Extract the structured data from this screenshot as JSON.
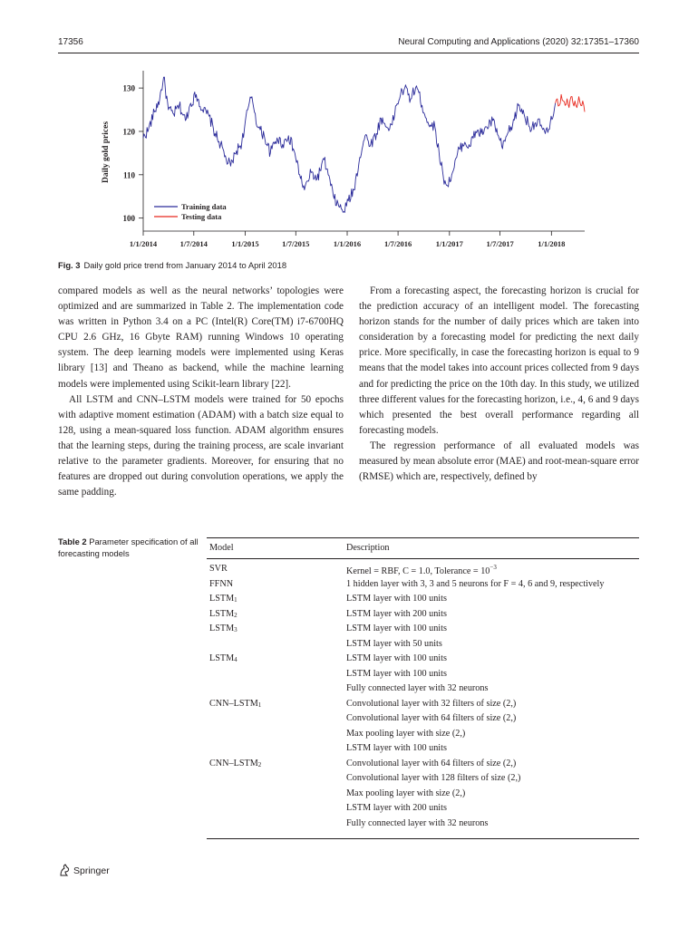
{
  "header": {
    "page_number": "17356",
    "journal": "Neural Computing and Applications (2020) 32:17351–17360"
  },
  "figure": {
    "label": "Fig. 3",
    "caption": "Daily gold price trend from January 2014 to April 2018"
  },
  "chart_data": {
    "type": "line",
    "title": "",
    "xlabel": "",
    "ylabel": "Daily gold prices",
    "x_ticks": [
      "1/1/2014",
      "1/7/2014",
      "1/1/2015",
      "1/7/2015",
      "1/1/2016",
      "1/7/2016",
      "1/1/2017",
      "1/7/2017",
      "1/1/2018"
    ],
    "y_ticks": [
      100,
      110,
      120,
      130
    ],
    "ylim": [
      97,
      134
    ],
    "xlim": [
      "2014-01-01",
      "2018-04-30"
    ],
    "legend_position": "bottom-left",
    "colors": {
      "Training data": "#2b2b9a",
      "Testing data": "#e8281e"
    },
    "series": [
      {
        "name": "Training data",
        "x": [
          "2014-01-01",
          "2014-01-20",
          "2014-02-10",
          "2014-03-01",
          "2014-03-15",
          "2014-04-01",
          "2014-04-20",
          "2014-05-10",
          "2014-06-01",
          "2014-06-20",
          "2014-07-10",
          "2014-08-01",
          "2014-08-25",
          "2014-09-15",
          "2014-10-05",
          "2014-10-25",
          "2014-11-10",
          "2014-12-01",
          "2014-12-20",
          "2015-01-10",
          "2015-01-25",
          "2015-02-15",
          "2015-03-10",
          "2015-04-01",
          "2015-04-25",
          "2015-05-15",
          "2015-06-05",
          "2015-06-25",
          "2015-07-15",
          "2015-08-01",
          "2015-08-25",
          "2015-09-15",
          "2015-10-10",
          "2015-10-25",
          "2015-11-15",
          "2015-12-05",
          "2015-12-20",
          "2016-01-05",
          "2016-01-25",
          "2016-02-15",
          "2016-03-05",
          "2016-03-25",
          "2016-04-15",
          "2016-05-01",
          "2016-05-20",
          "2016-06-10",
          "2016-06-25",
          "2016-07-10",
          "2016-07-25",
          "2016-08-15",
          "2016-09-05",
          "2016-09-25",
          "2016-10-10",
          "2016-10-25",
          "2016-11-10",
          "2016-11-25",
          "2016-12-10",
          "2016-12-25",
          "2017-01-15",
          "2017-02-05",
          "2017-02-25",
          "2017-03-15",
          "2017-04-05",
          "2017-04-25",
          "2017-05-15",
          "2017-06-05",
          "2017-06-25",
          "2017-07-10",
          "2017-07-25",
          "2017-08-15",
          "2017-09-05",
          "2017-09-25",
          "2017-10-15",
          "2017-11-05",
          "2017-11-25",
          "2017-12-10",
          "2017-12-25",
          "2018-01-15"
        ],
        "y": [
          118.5,
          120.5,
          124.5,
          127.5,
          132.5,
          125,
          124,
          126,
          122.5,
          126.5,
          128.5,
          125,
          123.5,
          119.5,
          117,
          113.5,
          112,
          115.5,
          117.5,
          125,
          128,
          121,
          119,
          115,
          118.5,
          117,
          119,
          115.5,
          110,
          106.5,
          110.5,
          109,
          113.5,
          110,
          104.5,
          102.5,
          101.5,
          104,
          106.5,
          114,
          119,
          117,
          119.5,
          123,
          121,
          121.5,
          126,
          128.5,
          130,
          127.5,
          130.5,
          126,
          123,
          121.5,
          121,
          115,
          109.5,
          107.5,
          111,
          116,
          117.5,
          116.5,
          120,
          119.5,
          121,
          122.5,
          119,
          116,
          119,
          121.5,
          126,
          124,
          121,
          122,
          121.5,
          119.5,
          120.5,
          126.5
        ]
      },
      {
        "name": "Testing data",
        "x": [
          "2018-01-15",
          "2018-01-22",
          "2018-01-29",
          "2018-02-05",
          "2018-02-12",
          "2018-02-19",
          "2018-02-26",
          "2018-03-05",
          "2018-03-12",
          "2018-03-19",
          "2018-03-26",
          "2018-04-02",
          "2018-04-09",
          "2018-04-16",
          "2018-04-23",
          "2018-04-30"
        ],
        "y": [
          126.5,
          127.5,
          126,
          128.5,
          127,
          126,
          127.5,
          125.5,
          128,
          126.5,
          127,
          125.5,
          128,
          126,
          127,
          124.5
        ]
      }
    ]
  },
  "left_column": [
    "compared models as well as the neural networks’ topologies were optimized and are summarized in Table 2. The implementation code was written in Python 3.4 on a PC (Intel(R) Core(TM) i7-6700HQ CPU 2.6 GHz, 16 Gbyte RAM) running Windows 10 operating system. The deep learning models were implemented using Keras library [13] and Theano as backend, while the machine learning models were implemented using Scikit-learn library [22].",
    "All LSTM and CNN–LSTM models were trained for 50 epochs with adaptive moment estimation (ADAM) with a batch size equal to 128, using a mean-squared loss function. ADAM algorithm ensures that the learning steps, during the training process, are scale invariant relative to the parameter gradients. Moreover, for ensuring that no features are dropped out during convolution operations, we apply the same padding."
  ],
  "right_column": [
    "From a forecasting aspect, the forecasting horizon is crucial for the prediction accuracy of an intelligent model. The forecasting horizon stands for the number of daily prices which are taken into consideration by a forecasting model for predicting the next daily price. More specifically, in case the forecasting horizon is equal to 9 means that the model takes into account prices collected from 9 days and for predicting the price on the 10th day. In this study, we utilized three different values for the forecasting horizon, i.e., 4, 6 and 9 days which presented the best overall performance regarding all forecasting models.",
    "The regression performance of all evaluated models was measured by mean absolute error (MAE) and root-mean-square error (RMSE) which are, respectively, defined by"
  ],
  "table": {
    "label": "Table 2",
    "caption": "Parameter specification of all forecasting models",
    "headers": {
      "model": "Model",
      "description": "Description"
    },
    "rows": [
      {
        "model": "SVR",
        "model_sub": "",
        "description": "Kernel = RBF, C = 1.0, Tolerance = 10",
        "description_sup": "−3"
      },
      {
        "model": "FFNN",
        "model_sub": "",
        "description": "1 hidden layer with 3, 3 and 5 neurons for F = 4, 6 and 9, respectively",
        "description_sup": ""
      },
      {
        "model": "LSTM",
        "model_sub": "1",
        "description": "LSTM layer with 100 units",
        "description_sup": ""
      },
      {
        "model": "LSTM",
        "model_sub": "2",
        "description": "LSTM layer with 200 units",
        "description_sup": ""
      },
      {
        "model": "LSTM",
        "model_sub": "3",
        "description": "LSTM layer with 100 units",
        "description_sup": ""
      },
      {
        "model": "",
        "model_sub": "",
        "description": "LSTM layer with 50 units",
        "description_sup": ""
      },
      {
        "model": "LSTM",
        "model_sub": "4",
        "description": "LSTM layer with 100 units",
        "description_sup": ""
      },
      {
        "model": "",
        "model_sub": "",
        "description": "LSTM layer with 100 units",
        "description_sup": ""
      },
      {
        "model": "",
        "model_sub": "",
        "description": "Fully connected layer with 32 neurons",
        "description_sup": ""
      },
      {
        "model": "CNN–LSTM",
        "model_sub": "1",
        "description": "Convolutional layer with 32 filters of size (2,)",
        "description_sup": ""
      },
      {
        "model": "",
        "model_sub": "",
        "description": "Convolutional layer with 64 filters of size (2,)",
        "description_sup": ""
      },
      {
        "model": "",
        "model_sub": "",
        "description": "Max pooling layer with size (2,)",
        "description_sup": ""
      },
      {
        "model": "",
        "model_sub": "",
        "description": "LSTM layer with 100 units",
        "description_sup": ""
      },
      {
        "model": "CNN–LSTM",
        "model_sub": "2",
        "description": "Convolutional layer with 64 filters of size (2,)",
        "description_sup": ""
      },
      {
        "model": "",
        "model_sub": "",
        "description": "Convolutional layer with 128 filters of size (2,)",
        "description_sup": ""
      },
      {
        "model": "",
        "model_sub": "",
        "description": "Max pooling layer with size (2,)",
        "description_sup": ""
      },
      {
        "model": "",
        "model_sub": "",
        "description": "LSTM layer with 200 units",
        "description_sup": ""
      },
      {
        "model": "",
        "model_sub": "",
        "description": "Fully connected layer with 32 neurons",
        "description_sup": ""
      }
    ]
  },
  "footer": {
    "publisher": "Springer"
  }
}
